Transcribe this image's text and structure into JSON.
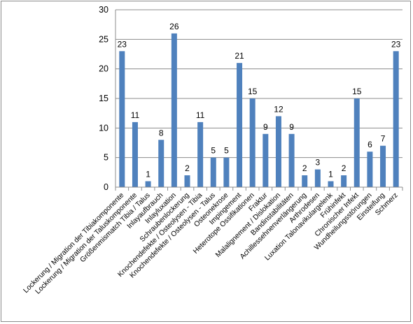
{
  "chart_data": {
    "type": "bar",
    "title": "",
    "xlabel": "",
    "ylabel": "",
    "ylim": [
      0,
      30
    ],
    "yticks": [
      0,
      5,
      10,
      15,
      20,
      25,
      30
    ],
    "grid": true,
    "legend": "none",
    "bar_color": "#4f81bd",
    "categories": [
      "Lockerung / Migration der Tibiakomponente",
      "Lockerung / Migration der Taluskomponente",
      "Größenmismatch Tibia / Talus",
      "Inlayaufbrauch",
      "Inlayluxation",
      "Schraubenlockerung",
      "Knochendefekte / Osteolysen - Tibia",
      "Knochendefekte / Osteolysen - Talus",
      "Osteonekrose",
      "Impingement",
      "Heterotope Ossifikationen",
      "Fraktur",
      "Malalignement / Dislokation",
      "Bandinstabilitäten",
      "Achillessehnenverlängerung",
      "Arthrodesen",
      "Luxation Talonavikulargelenk",
      "Frühinfekt",
      "Chronischer Infekt",
      "Wundheilungsstörungen",
      "Einsteifung",
      "Schmerz"
    ],
    "values": [
      23,
      11,
      1,
      8,
      26,
      2,
      11,
      5,
      5,
      21,
      15,
      9,
      12,
      9,
      2,
      3,
      1,
      2,
      15,
      6,
      7,
      23
    ]
  }
}
